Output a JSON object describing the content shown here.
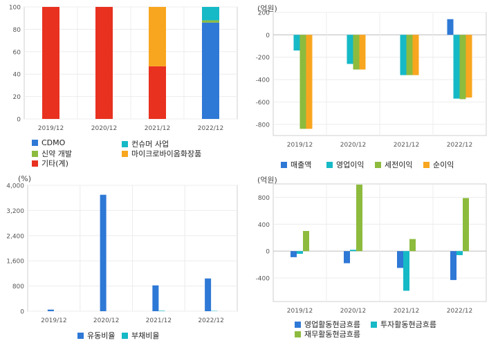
{
  "chart_data": [
    {
      "id": "revenue-mix",
      "type": "bar",
      "stacked": true,
      "title": "",
      "unit_label": "",
      "categories": [
        "2019/12",
        "2020/12",
        "2021/12",
        "2022/12"
      ],
      "ylim": [
        0,
        100
      ],
      "yticks": [
        0,
        20,
        40,
        60,
        80,
        100
      ],
      "series": [
        {
          "name": "CDMO",
          "color": "#2e78d6",
          "values": [
            0,
            0,
            0,
            86
          ]
        },
        {
          "name": "신약 개발",
          "color": "#8dbb3e",
          "values": [
            0,
            0,
            0,
            2
          ]
        },
        {
          "name": "기타(계)",
          "color": "#e8311f",
          "values": [
            100,
            100,
            47,
            0
          ]
        },
        {
          "name": "컨슈머 사업",
          "color": "#16b9c6",
          "values": [
            0,
            0,
            0,
            12
          ]
        },
        {
          "name": "마이크로바이옴화장품",
          "color": "#f8a61f",
          "values": [
            0,
            0,
            53,
            0
          ]
        }
      ],
      "legend_order": [
        "CDMO",
        "컨슈머 사업",
        "신약 개발",
        "마이크로바이옴화장품",
        "기타(계)"
      ]
    },
    {
      "id": "income",
      "type": "bar",
      "title": "",
      "unit_label": "(억원)",
      "categories": [
        "2019/12",
        "2020/12",
        "2021/12",
        "2022/12"
      ],
      "ylim": [
        -900,
        200
      ],
      "yticks": [
        -800,
        -600,
        -400,
        -200,
        0,
        200
      ],
      "series": [
        {
          "name": "매출액",
          "color": "#2e78d6",
          "values": [
            0,
            0,
            0,
            140
          ]
        },
        {
          "name": "영업이익",
          "color": "#16b9c6",
          "values": [
            -140,
            -260,
            -360,
            -570
          ]
        },
        {
          "name": "세전이익",
          "color": "#8dbb3e",
          "values": [
            -840,
            -310,
            -360,
            -575
          ]
        },
        {
          "name": "순이익",
          "color": "#f8a61f",
          "values": [
            -840,
            -310,
            -360,
            -560
          ]
        }
      ]
    },
    {
      "id": "ratios",
      "type": "bar",
      "title": "",
      "unit_label": "(%)",
      "categories": [
        "2019/12",
        "2020/12",
        "2021/12",
        "2022/12"
      ],
      "ylim": [
        0,
        4000
      ],
      "yticks": [
        0,
        800,
        1600,
        2400,
        3200,
        4000
      ],
      "series": [
        {
          "name": "유동비율",
          "color": "#2e78d6",
          "values": [
            50,
            3700,
            820,
            1040
          ]
        },
        {
          "name": "부채비율",
          "color": "#16b9c6",
          "values": [
            0,
            0,
            15,
            10
          ]
        }
      ]
    },
    {
      "id": "cashflow",
      "type": "bar",
      "title": "",
      "unit_label": "(억원)",
      "categories": [
        "2019/12",
        "2020/12",
        "2021/12",
        "2022/12"
      ],
      "ylim": [
        -750,
        1000
      ],
      "yticks": [
        -400,
        0,
        400,
        800
      ],
      "series": [
        {
          "name": "영업활동현금흐름",
          "color": "#2e78d6",
          "values": [
            -90,
            -180,
            -250,
            -430
          ]
        },
        {
          "name": "투자활동현금흐름",
          "color": "#16b9c6",
          "values": [
            -40,
            20,
            -590,
            -60
          ]
        },
        {
          "name": "재무활동현금흐름",
          "color": "#8dbb3e",
          "values": [
            300,
            990,
            180,
            790
          ]
        }
      ]
    }
  ]
}
